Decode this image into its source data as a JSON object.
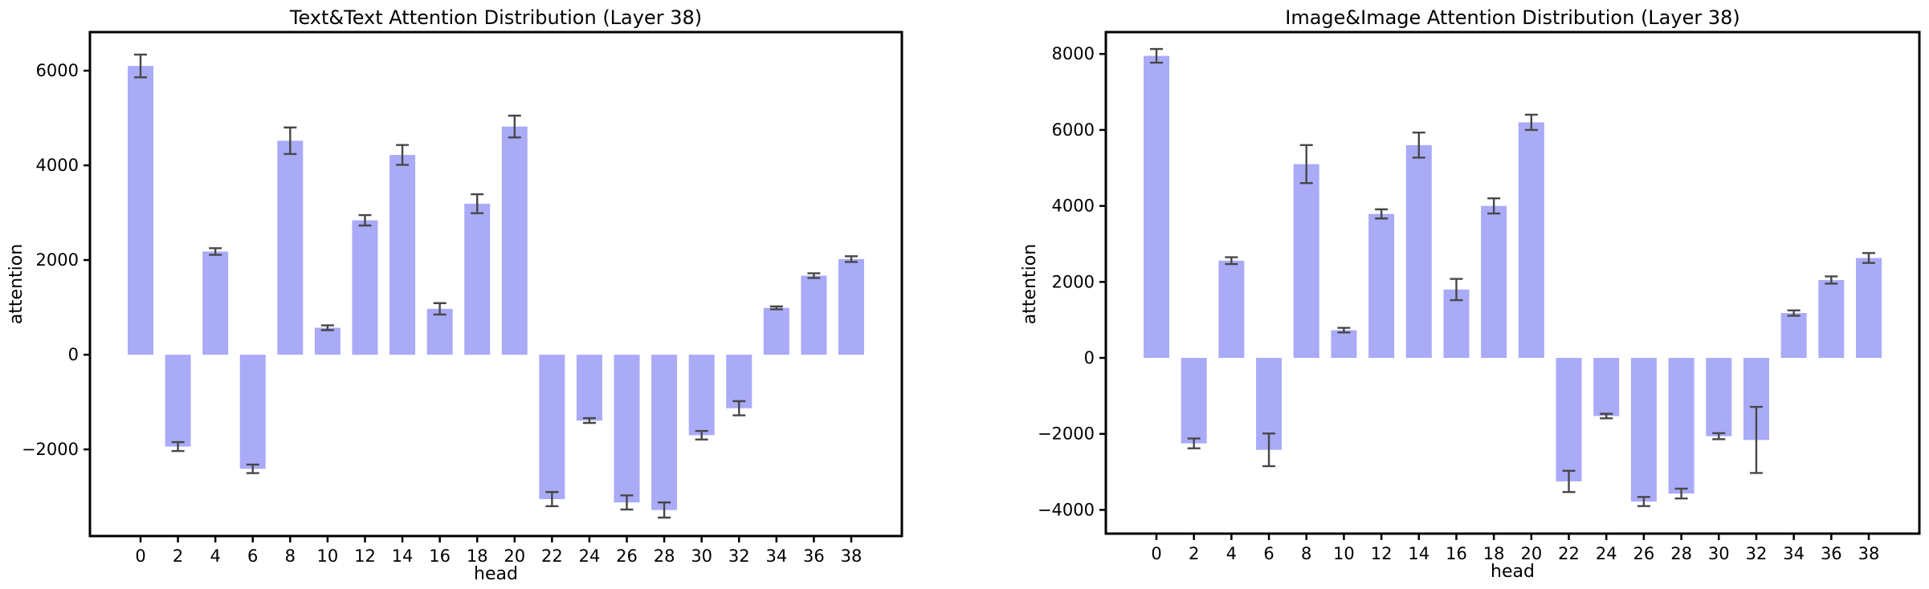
{
  "page": {
    "background": "#ffffff"
  },
  "chart_data": [
    {
      "type": "bar",
      "title": "Text&Text Attention Distribution (Layer 38)",
      "xlabel": "head",
      "ylabel": "attention",
      "categories": [
        0,
        2,
        4,
        6,
        8,
        10,
        12,
        14,
        16,
        18,
        20,
        22,
        24,
        26,
        28,
        30,
        32,
        34,
        36,
        38
      ],
      "values": [
        6100,
        -1940,
        2180,
        -2410,
        4520,
        570,
        2840,
        4220,
        970,
        3190,
        4820,
        -3050,
        -1390,
        -3120,
        -3280,
        -1700,
        -1130,
        990,
        1670,
        2020
      ],
      "errors": [
        240,
        95,
        70,
        90,
        280,
        50,
        110,
        210,
        120,
        200,
        230,
        150,
        50,
        150,
        160,
        90,
        150,
        30,
        50,
        60
      ],
      "yticks": [
        6000,
        4000,
        2000,
        0,
        -2000
      ],
      "ylim": [
        -3830,
        6815
      ],
      "grid": false,
      "legend": "none",
      "bar_color": "#a9abf7",
      "error_color": "#474747"
    },
    {
      "type": "bar",
      "title": "Image&Image Attention Distribution (Layer 38)",
      "xlabel": "head",
      "ylabel": "attention",
      "categories": [
        0,
        2,
        4,
        6,
        8,
        10,
        12,
        14,
        16,
        18,
        20,
        22,
        24,
        26,
        28,
        30,
        32,
        34,
        36,
        38
      ],
      "values": [
        7950,
        -2250,
        2560,
        -2420,
        5100,
        730,
        3790,
        5600,
        1800,
        4000,
        6200,
        -3250,
        -1530,
        -3780,
        -3570,
        -2060,
        -2160,
        1180,
        2050,
        2630
      ],
      "errors": [
        180,
        130,
        90,
        430,
        500,
        60,
        120,
        330,
        280,
        200,
        200,
        280,
        60,
        120,
        130,
        80,
        870,
        70,
        95,
        130
      ],
      "yticks": [
        8000,
        6000,
        4000,
        2000,
        0,
        -2000,
        -4000
      ],
      "ylim": [
        -4625,
        8575
      ],
      "grid": false,
      "legend": "none",
      "bar_color": "#a9abf7",
      "error_color": "#474747"
    }
  ]
}
